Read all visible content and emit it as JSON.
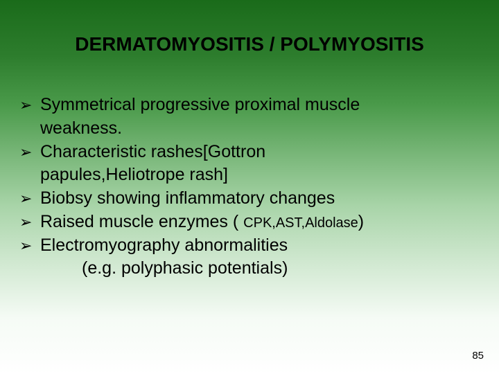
{
  "styling": {
    "slide_width": 720,
    "slide_height": 540,
    "background_gradient_stops": [
      "#1a6b1a",
      "#2d7d2d",
      "#4a9a4a",
      "#7bb87b",
      "#a8d4a8",
      "#d0e8d0",
      "#f5fbf5",
      "#ffffff"
    ],
    "title_fontsize": 28,
    "title_fontweight": "bold",
    "title_color": "#000000",
    "body_fontsize": 25,
    "body_color": "#000000",
    "small_inline_fontsize": 20,
    "page_number_fontsize": 15,
    "bullet_glyph": "➢",
    "font_family": "Arial"
  },
  "title": "DERMATOMYOSITIS / POLYMYOSITIS",
  "bullets": [
    {
      "line1": "Symmetrical progressive proximal muscle",
      "line2": "weakness."
    },
    {
      "line1": "Characteristic rashes[Gottron",
      "line2": "papules,Heliotrope rash]"
    },
    {
      "line1": "Biobsy showing inflammatory changes"
    },
    {
      "line1_prefix": "Raised muscle enzymes ( ",
      "line1_small": "CPK,AST,Aldolase",
      "line1_suffix": ")"
    },
    {
      "line1": "Electromyography abnormalities",
      "line2_indented": "(e.g. polyphasic potentials)"
    }
  ],
  "page_number": "85"
}
